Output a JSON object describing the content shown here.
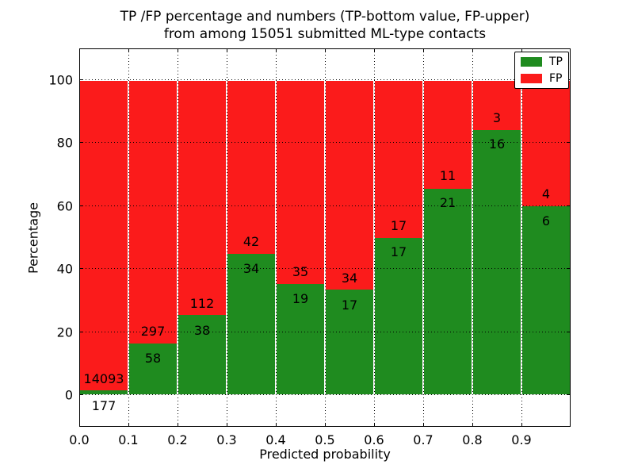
{
  "title": {
    "line1": "TP /FP percentage and numbers (TP-bottom value, FP-upper)",
    "line2": "from among 15051 submitted ML-type contacts"
  },
  "axes": {
    "xlabel": "Predicted probability",
    "ylabel": "Percentage"
  },
  "legend": {
    "entries": [
      {
        "label": "TP",
        "color": "#1f8b1f"
      },
      {
        "label": "FP",
        "color": "#fb1b1b"
      }
    ]
  },
  "chart_data": {
    "type": "bar",
    "stacked": true,
    "title": "TP /FP percentage and numbers (TP-bottom value, FP-upper) from among 15051 submitted ML-type contacts",
    "xlabel": "Predicted probability",
    "ylabel": "Percentage",
    "total_contacts": 15051,
    "x_bin_edges": [
      0.0,
      0.1,
      0.2,
      0.3,
      0.4,
      0.5,
      0.6,
      0.7,
      0.8,
      0.9,
      1.0
    ],
    "x_tick_labels": [
      "0.0",
      "0.1",
      "0.2",
      "0.3",
      "0.4",
      "0.5",
      "0.6",
      "0.7",
      "0.8",
      "0.9"
    ],
    "y_ticks": [
      0,
      20,
      40,
      60,
      80,
      100
    ],
    "xlim": [
      0.0,
      1.0
    ],
    "ylim": [
      -10,
      110
    ],
    "grid": true,
    "legend_position": "upper right",
    "series": [
      {
        "name": "TP",
        "color": "#1f8b1f",
        "counts": [
          177,
          58,
          38,
          34,
          19,
          17,
          17,
          21,
          16,
          6
        ],
        "percent": [
          1.24,
          16.34,
          25.33,
          44.74,
          35.19,
          33.33,
          50.0,
          65.63,
          84.21,
          60.0
        ]
      },
      {
        "name": "FP",
        "color": "#fb1b1b",
        "counts": [
          14093,
          297,
          112,
          42,
          35,
          34,
          17,
          11,
          3,
          4
        ],
        "percent": [
          98.76,
          83.66,
          74.67,
          55.26,
          64.81,
          66.67,
          50.0,
          34.37,
          15.79,
          40.0
        ]
      }
    ]
  }
}
